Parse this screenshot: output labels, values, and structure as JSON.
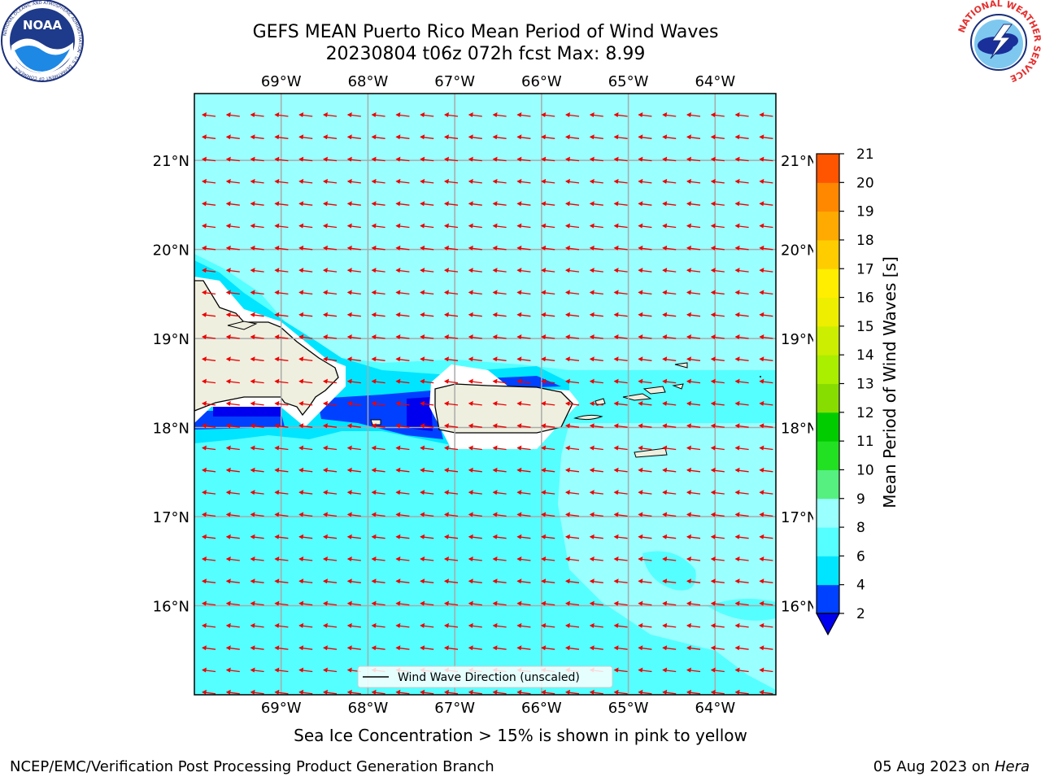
{
  "header": {
    "title_line1": "GEFS MEAN Puerto Rico Mean Period of Wind Waves",
    "title_line2": "20230804 t06z 072h fcst   Max: 8.99"
  },
  "logos": {
    "noara_text": "NOAA",
    "noaa_ring": "NATIONAL OCEANIC AND ATMOSPHERIC ADMINISTRATION · U.S. DEPARTMENT OF COMMERCE",
    "nws_ring": "NATIONAL WEATHER SERVICE"
  },
  "chart_data": {
    "type": "heatmap",
    "title": "GEFS MEAN Puerto Rico Mean Period of Wind Waves",
    "subtitle": "20230804 t06z 072h fcst   Max: 8.99",
    "x_ticks": [
      "69°W",
      "68°W",
      "67°W",
      "66°W",
      "65°W",
      "64°W"
    ],
    "x_tick_values": [
      -69,
      -68,
      -67,
      -66,
      -65,
      -64
    ],
    "y_ticks": [
      "21°N",
      "20°N",
      "19°N",
      "18°N",
      "17°N",
      "16°N"
    ],
    "y_tick_values": [
      21,
      20,
      19,
      18,
      17,
      16
    ],
    "lon_range": [
      -70.0,
      -63.3
    ],
    "lat_range": [
      15.0,
      21.75
    ],
    "grid": true,
    "legend": {
      "label": "Wind Wave Direction (unscaled)",
      "placement": "bottom-center"
    },
    "wind_direction": "toward west",
    "colorbar": {
      "label": "Mean Period of Wind Waves [s]",
      "ticks": [
        2,
        4,
        6,
        8,
        9,
        10,
        11,
        12,
        13,
        14,
        15,
        16,
        17,
        18,
        19,
        20,
        21
      ],
      "colors": [
        "#0040ff",
        "#00e5ff",
        "#55ffff",
        "#99ffff",
        "#55f080",
        "#22e022",
        "#00cc00",
        "#88dd00",
        "#aaee00",
        "#ccee00",
        "#eeee00",
        "#ffee00",
        "#ffcc00",
        "#ffaa00",
        "#ff8800",
        "#ff5500",
        "#ff2200",
        "#ee0000"
      ],
      "under_color": "#0000ee"
    },
    "period_colors": {
      "2-4": "#0040ff",
      "4-6": "#00e5ff",
      "6-8": "#55ffff",
      "8-9": "#99ffff"
    },
    "max_value": 8.99
  },
  "notes": {
    "sea_ice": "Sea Ice Concentration > 15% is shown in pink to yellow"
  },
  "footer": {
    "left": "NCEP/EMC/Verification Post Processing Product Generation Branch",
    "right_prefix": "05 Aug 2023 on ",
    "right_host": "Hera"
  }
}
